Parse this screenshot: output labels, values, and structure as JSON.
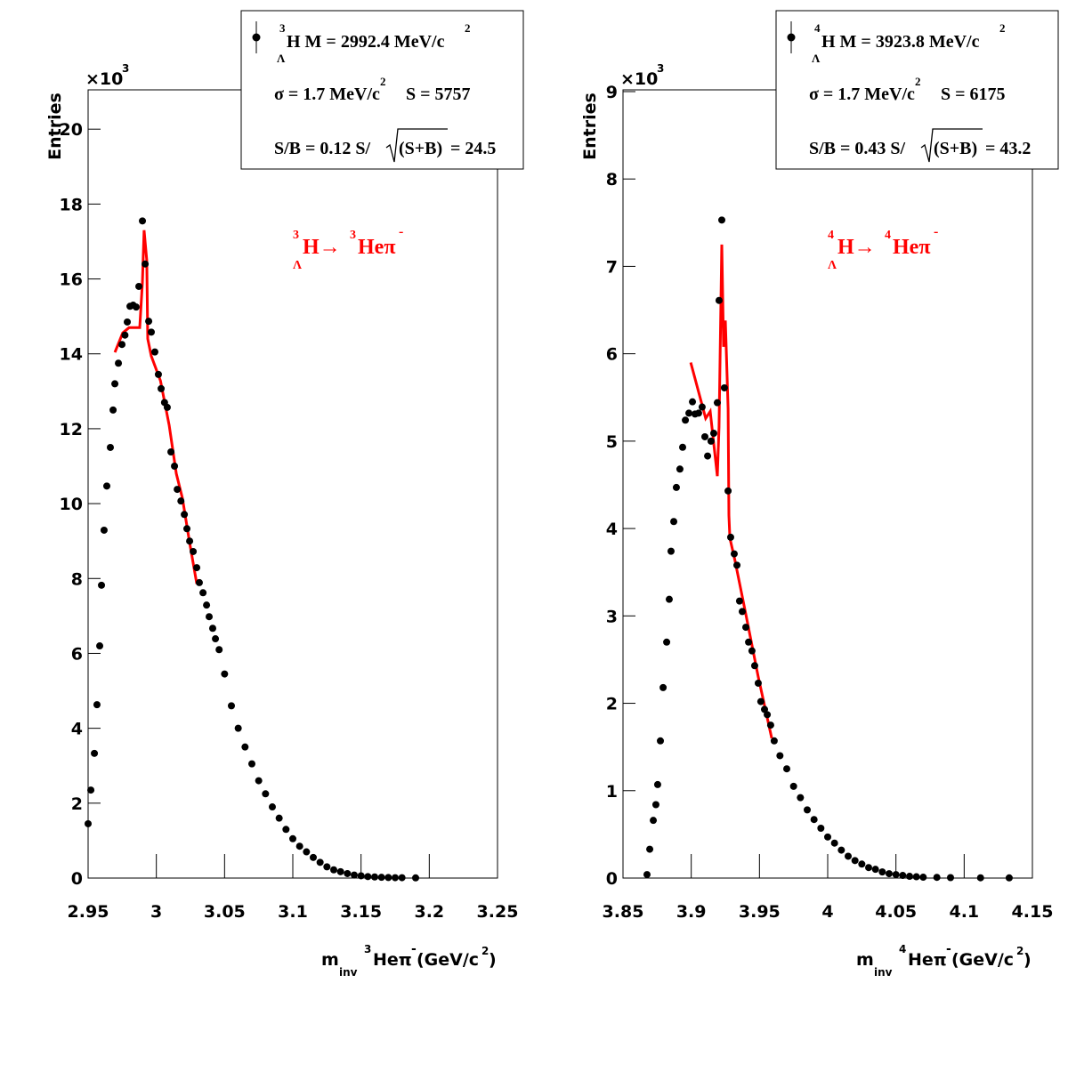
{
  "chart_data": [
    {
      "type": "scatter",
      "y_label": "Entries",
      "y_multiplier": {
        "base": "×10",
        "exponent": "3"
      },
      "x_label": {
        "m": "m",
        "sub": "inv",
        "sup": "3",
        "particle": "Heπ",
        "charge": "-",
        "unit": "(GeV/c",
        "unit_sup": "2",
        "close": ")"
      },
      "annotation": {
        "sup": "3",
        "sub": "Λ",
        "parent": "H→",
        "sup2": "3",
        "daughter": "Heπ",
        "charge": "-",
        "color": "#ff0000"
      },
      "legend": {
        "corner": "top-right",
        "line1": {
          "sup": "3",
          "sub": "Λ",
          "text": "H M = 2992.4 MeV/c",
          "sup2": "2"
        },
        "line2": {
          "text": "σ = 1.7 MeV/c",
          "sup": "2",
          "text2": "S = 5757"
        },
        "line3": {
          "text": "S/B = 0.12  S/",
          "sqrt": "(S+B)",
          "text2": "= 24.5"
        }
      },
      "xlim": [
        2.95,
        3.25
      ],
      "xticks": [
        2.95,
        3,
        3.05,
        3.1,
        3.15,
        3.2,
        3.25
      ],
      "ylim": [
        0,
        21.05
      ],
      "yticks": [
        0,
        2,
        4,
        6,
        8,
        10,
        12,
        14,
        16,
        18,
        20
      ],
      "grid": false,
      "color": "#000000",
      "x": [
        2.95,
        2.952,
        2.9546,
        2.9565,
        2.9585,
        2.9598,
        2.9617,
        2.9637,
        2.9663,
        2.9683,
        2.9696,
        2.9722,
        2.9748,
        2.977,
        2.9787,
        2.9807,
        2.983,
        2.9852,
        2.9872,
        2.9898,
        2.9918,
        2.9944,
        2.9963,
        2.9989,
        3.0015,
        3.0035,
        3.006,
        3.008,
        3.0107,
        3.0133,
        3.0153,
        3.018,
        3.0205,
        3.0224,
        3.0244,
        3.027,
        3.0296,
        3.0315,
        3.0342,
        3.0368,
        3.0387,
        3.0413,
        3.0433,
        3.046,
        3.05,
        3.055,
        3.06,
        3.065,
        3.07,
        3.075,
        3.08,
        3.085,
        3.09,
        3.095,
        3.1,
        3.105,
        3.11,
        3.115,
        3.12,
        3.125,
        3.13,
        3.135,
        3.14,
        3.145,
        3.15,
        3.155,
        3.16,
        3.165,
        3.17,
        3.175,
        3.18,
        3.19
      ],
      "values": [
        1.45,
        2.35,
        3.33,
        4.63,
        6.2,
        7.82,
        9.29,
        10.47,
        11.5,
        12.5,
        13.2,
        13.75,
        14.25,
        14.5,
        14.85,
        15.27,
        15.3,
        15.25,
        15.8,
        17.55,
        16.4,
        14.87,
        14.58,
        14.05,
        13.45,
        13.07,
        12.7,
        12.57,
        11.38,
        11.0,
        10.38,
        10.07,
        9.71,
        9.33,
        9.0,
        8.72,
        8.29,
        7.89,
        7.62,
        7.29,
        6.98,
        6.67,
        6.39,
        6.1,
        5.45,
        4.6,
        4.0,
        3.5,
        3.05,
        2.6,
        2.25,
        1.9,
        1.6,
        1.3,
        1.05,
        0.85,
        0.7,
        0.55,
        0.42,
        0.3,
        0.22,
        0.17,
        0.12,
        0.08,
        0.06,
        0.04,
        0.03,
        0.02,
        0.015,
        0.01,
        0.01,
        0.005
      ],
      "fit": {
        "color": "#ff0000",
        "x": [
          2.9696,
          2.9754,
          2.98,
          2.9878,
          2.9898,
          2.991,
          2.993,
          2.9937,
          2.9963,
          3.003,
          3.0094,
          3.0146,
          3.0191,
          3.0244,
          3.0296
        ],
        "values": [
          14.04,
          14.56,
          14.7,
          14.7,
          15.9,
          17.3,
          16.5,
          14.4,
          13.94,
          13.28,
          12.09,
          10.8,
          10.14,
          8.95,
          7.86
        ]
      }
    },
    {
      "type": "scatter",
      "y_label": "Entries",
      "y_multiplier": {
        "base": "×10",
        "exponent": "3"
      },
      "x_label": {
        "m": "m",
        "sub": "inv",
        "sup": "4",
        "particle": "Heπ",
        "charge": "-",
        "unit": "(GeV/c",
        "unit_sup": "2",
        "close": ")"
      },
      "annotation": {
        "sup": "4",
        "sub": "Λ",
        "parent": "H→",
        "sup2": "4",
        "daughter": "Heπ",
        "charge": "-",
        "color": "#ff0000"
      },
      "legend": {
        "corner": "top-right",
        "line1": {
          "sup": "4",
          "sub": "Λ",
          "text": "H M = 3923.8 MeV/c",
          "sup2": "2"
        },
        "line2": {
          "text": "σ = 1.7 MeV/c",
          "sup": "2",
          "text2": "S = 6175"
        },
        "line3": {
          "text": "S/B = 0.43  S/",
          "sqrt": "(S+B)",
          "text2": "= 43.2"
        }
      },
      "xlim": [
        3.85,
        4.15
      ],
      "xticks": [
        3.85,
        3.9,
        3.95,
        4,
        4.05,
        4.1,
        4.15
      ],
      "ylim": [
        0,
        9.02
      ],
      "yticks": [
        0,
        1,
        2,
        3,
        4,
        5,
        6,
        7,
        8,
        9
      ],
      "grid": false,
      "color": "#000000",
      "x": [
        3.8676,
        3.8696,
        3.8722,
        3.8741,
        3.8754,
        3.8774,
        3.8794,
        3.882,
        3.8839,
        3.8852,
        3.8872,
        3.8891,
        3.8917,
        3.8937,
        3.8957,
        3.8983,
        3.9009,
        3.9028,
        3.9054,
        3.908,
        3.91,
        3.912,
        3.9145,
        3.9165,
        3.9191,
        3.9204,
        3.9224,
        3.9243,
        3.927,
        3.9289,
        3.9315,
        3.9335,
        3.9354,
        3.9374,
        3.94,
        3.942,
        3.9445,
        3.9465,
        3.9491,
        3.951,
        3.9537,
        3.9557,
        3.9582,
        3.9608,
        3.965,
        3.97,
        3.975,
        3.98,
        3.985,
        3.99,
        3.995,
        4.0,
        4.005,
        4.01,
        4.015,
        4.02,
        4.025,
        4.03,
        4.035,
        4.04,
        4.045,
        4.05,
        4.055,
        4.06,
        4.065,
        4.07,
        4.08,
        4.09,
        4.112,
        4.133
      ],
      "values": [
        0.04,
        0.33,
        0.66,
        0.84,
        1.07,
        1.57,
        2.18,
        2.7,
        3.19,
        3.74,
        4.08,
        4.47,
        4.68,
        4.93,
        5.24,
        5.32,
        5.45,
        5.31,
        5.32,
        5.39,
        5.05,
        4.83,
        5.0,
        5.09,
        5.44,
        6.61,
        7.53,
        5.61,
        4.43,
        3.9,
        3.71,
        3.58,
        3.17,
        3.05,
        2.87,
        2.7,
        2.6,
        2.43,
        2.23,
        2.02,
        1.93,
        1.87,
        1.75,
        1.57,
        1.4,
        1.25,
        1.05,
        0.92,
        0.78,
        0.67,
        0.57,
        0.47,
        0.4,
        0.32,
        0.25,
        0.2,
        0.16,
        0.12,
        0.1,
        0.07,
        0.05,
        0.04,
        0.03,
        0.02,
        0.015,
        0.01,
        0.008,
        0.005,
        0.003,
        0.002
      ],
      "fit": {
        "color": "#ff0000",
        "x": [
          3.8996,
          3.9106,
          3.9139,
          3.9191,
          3.9204,
          3.9224,
          3.9237,
          3.925,
          3.927,
          3.9276,
          3.9283,
          3.932,
          3.94,
          3.949,
          3.959
        ],
        "values": [
          5.9,
          5.26,
          5.34,
          4.6,
          5.16,
          7.25,
          6.08,
          6.38,
          5.37,
          4.15,
          3.89,
          3.64,
          3.02,
          2.31,
          1.6
        ]
      }
    }
  ]
}
